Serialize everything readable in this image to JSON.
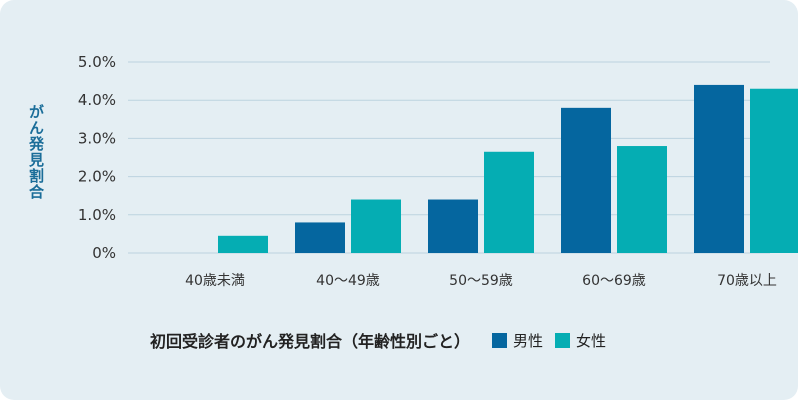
{
  "chart_data": {
    "type": "bar",
    "title": "初回受診者のがん発見割合（年齢性別ごと）",
    "ylabel": "がん発見割合",
    "xlabel": "",
    "categories": [
      "40歳未満",
      "40〜49歳",
      "50〜59歳",
      "60〜69歳",
      "70歳以上"
    ],
    "series": [
      {
        "name": "男性",
        "color": "#05669f",
        "values": [
          0.0,
          0.8,
          1.4,
          3.8,
          4.4
        ]
      },
      {
        "name": "女性",
        "color": "#05adb3",
        "values": [
          0.45,
          1.4,
          2.65,
          2.8,
          4.3
        ]
      }
    ],
    "ylim": [
      0,
      5
    ],
    "yticks": [
      "0%",
      "1.0%",
      "2.0%",
      "3.0%",
      "4.0%",
      "5.0%"
    ],
    "grid": true,
    "legend": "bottom"
  },
  "legend": {
    "male": "男性",
    "female": "女性",
    "male_color": "#05669f",
    "female_color": "#05adb3"
  }
}
